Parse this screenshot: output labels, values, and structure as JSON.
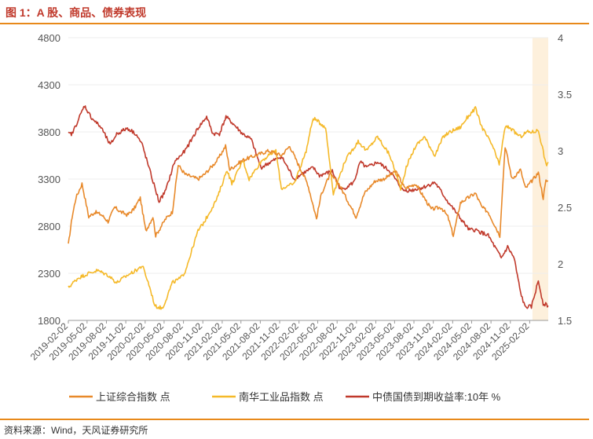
{
  "figure": {
    "title": "图 1：A 股、商品、债券表现",
    "source": "资料来源：Wind，天风证券研究所"
  },
  "chart_data": {
    "type": "line",
    "title": "图 1：A 股、商品、债券表现",
    "left_axis": {
      "ylim": [
        1800,
        4800
      ],
      "ticks": [
        1800,
        2300,
        2800,
        3300,
        3800,
        4300,
        4800
      ]
    },
    "right_axis": {
      "ylim": [
        1.5,
        4
      ],
      "ticks": [
        1.5,
        2,
        2.5,
        3,
        3.5,
        4
      ]
    },
    "x_ticks": [
      "2019-02-02",
      "2019-05-02",
      "2019-08-02",
      "2019-11-02",
      "2020-02-02",
      "2020-05-02",
      "2020-08-02",
      "2020-11-02",
      "2021-02-02",
      "2021-05-02",
      "2021-08-02",
      "2021-11-02",
      "2022-02-02",
      "2022-05-02",
      "2022-08-02",
      "2022-11-02",
      "2023-02-02",
      "2023-05-02",
      "2023-08-02",
      "2023-11-02",
      "2024-02-02",
      "2024-05-02",
      "2024-08-02",
      "2024-11-02",
      "2025-02-02"
    ],
    "x_range": [
      "2019-02-02",
      "2025-05-01"
    ],
    "highlight": {
      "from": "2025-02-15",
      "to": "2025-05-01",
      "color": "#fdf0dc"
    },
    "series": [
      {
        "name": "上证综合指数 点",
        "axis": "left",
        "color": "#e8892a",
        "x": [
          "2019-02-02",
          "2019-02-20",
          "2019-03-10",
          "2019-04-08",
          "2019-05-10",
          "2019-06-10",
          "2019-07-10",
          "2019-08-10",
          "2019-09-10",
          "2019-10-10",
          "2019-11-10",
          "2019-12-10",
          "2020-01-10",
          "2020-02-05",
          "2020-03-10",
          "2020-03-23",
          "2020-05-10",
          "2020-06-10",
          "2020-07-08",
          "2020-08-10",
          "2020-10-10",
          "2020-11-10",
          "2021-01-10",
          "2021-02-18",
          "2021-03-10",
          "2021-05-10",
          "2021-07-10",
          "2021-09-10",
          "2021-11-10",
          "2021-12-20",
          "2022-01-20",
          "2022-03-15",
          "2022-04-26",
          "2022-05-20",
          "2022-06-30",
          "2022-08-10",
          "2022-10-31",
          "2022-12-10",
          "2023-01-30",
          "2023-03-10",
          "2023-05-09",
          "2023-06-20",
          "2023-08-10",
          "2023-10-23",
          "2023-12-10",
          "2024-01-10",
          "2024-02-05",
          "2024-03-10",
          "2024-05-20",
          "2024-06-20",
          "2024-07-20",
          "2024-09-13",
          "2024-09-30",
          "2024-10-08",
          "2024-11-10",
          "2024-12-20",
          "2025-01-13",
          "2025-02-20",
          "2025-03-15",
          "2025-04-07",
          "2025-04-20",
          "2025-05-01"
        ],
        "values": [
          2600,
          2900,
          3100,
          3250,
          2900,
          2950,
          2920,
          2850,
          3000,
          2950,
          2920,
          2980,
          3100,
          2750,
          2900,
          2700,
          2880,
          2950,
          3450,
          3350,
          3300,
          3350,
          3500,
          3650,
          3400,
          3500,
          3550,
          3600,
          3550,
          3650,
          3500,
          3250,
          2880,
          3150,
          3350,
          3250,
          2900,
          3150,
          3280,
          3300,
          3380,
          3200,
          3250,
          2980,
          3000,
          2900,
          2700,
          3050,
          3150,
          3000,
          2950,
          2700,
          3350,
          3650,
          3300,
          3400,
          3200,
          3300,
          3370,
          3100,
          3280,
          3280
        ]
      },
      {
        "name": "南华工业品指数 点",
        "axis": "left",
        "color": "#f5b929",
        "x": [
          "2019-02-02",
          "2019-03-20",
          "2019-05-10",
          "2019-06-20",
          "2019-08-10",
          "2019-09-20",
          "2019-11-10",
          "2019-12-20",
          "2020-01-20",
          "2020-02-20",
          "2020-03-20",
          "2020-04-25",
          "2020-06-10",
          "2020-07-20",
          "2020-08-10",
          "2020-10-10",
          "2020-11-10",
          "2021-01-10",
          "2021-02-25",
          "2021-03-20",
          "2021-05-12",
          "2021-06-10",
          "2021-08-10",
          "2021-10-15",
          "2021-11-10",
          "2022-01-10",
          "2022-03-08",
          "2022-04-10",
          "2022-06-08",
          "2022-07-15",
          "2022-09-10",
          "2022-11-10",
          "2022-12-20",
          "2023-02-10",
          "2023-04-10",
          "2023-05-31",
          "2023-06-30",
          "2023-08-10",
          "2023-09-20",
          "2023-11-10",
          "2023-12-20",
          "2024-01-20",
          "2024-03-10",
          "2024-04-10",
          "2024-05-20",
          "2024-06-20",
          "2024-08-10",
          "2024-09-10",
          "2024-10-08",
          "2024-10-30",
          "2024-11-20",
          "2024-12-20",
          "2025-01-20",
          "2025-02-20",
          "2025-03-15",
          "2025-04-07",
          "2025-04-20",
          "2025-05-01"
        ],
        "values": [
          2150,
          2250,
          2300,
          2330,
          2280,
          2200,
          2280,
          2330,
          2380,
          2180,
          1950,
          1930,
          2200,
          2250,
          2320,
          2750,
          2850,
          3100,
          3400,
          3250,
          3500,
          3300,
          3500,
          3600,
          3200,
          3250,
          3600,
          3950,
          3850,
          3150,
          3500,
          3700,
          3600,
          3750,
          3550,
          3200,
          3450,
          3650,
          3750,
          3550,
          3750,
          3800,
          3850,
          3950,
          4050,
          3850,
          3650,
          3450,
          3850,
          3850,
          3800,
          3750,
          3800,
          3800,
          3820,
          3600,
          3450,
          3480
        ]
      },
      {
        "name": "中债国债到期收益率:10年 %",
        "axis": "right",
        "color": "#c0392b",
        "x": [
          "2019-02-02",
          "2019-02-20",
          "2019-04-20",
          "2019-05-20",
          "2019-07-10",
          "2019-08-20",
          "2019-09-20",
          "2019-11-10",
          "2019-12-20",
          "2020-01-20",
          "2020-02-20",
          "2020-04-08",
          "2020-05-10",
          "2020-06-20",
          "2020-08-10",
          "2020-10-10",
          "2020-11-20",
          "2020-12-20",
          "2021-01-20",
          "2021-02-20",
          "2021-03-20",
          "2021-05-10",
          "2021-06-20",
          "2021-08-05",
          "2021-09-20",
          "2021-11-10",
          "2022-01-10",
          "2022-02-20",
          "2022-04-10",
          "2022-05-10",
          "2022-07-10",
          "2022-08-20",
          "2022-10-20",
          "2022-11-20",
          "2022-12-20",
          "2023-02-10",
          "2023-04-10",
          "2023-06-10",
          "2023-07-20",
          "2023-09-20",
          "2023-11-10",
          "2024-01-10",
          "2024-02-20",
          "2024-04-20",
          "2024-05-20",
          "2024-07-20",
          "2024-09-20",
          "2024-10-20",
          "2024-11-20",
          "2024-12-20",
          "2025-01-10",
          "2025-02-10",
          "2025-03-15",
          "2025-04-07",
          "2025-05-01"
        ],
        "values": [
          3.15,
          3.15,
          3.4,
          3.3,
          3.2,
          3.05,
          3.15,
          3.2,
          3.15,
          3.05,
          2.85,
          2.55,
          2.65,
          2.9,
          3.0,
          3.2,
          3.3,
          3.15,
          3.15,
          3.3,
          3.25,
          3.15,
          3.1,
          2.85,
          2.9,
          2.95,
          2.75,
          2.8,
          2.85,
          2.78,
          2.82,
          2.65,
          2.72,
          2.9,
          2.85,
          2.9,
          2.82,
          2.65,
          2.65,
          2.68,
          2.72,
          2.55,
          2.45,
          2.3,
          2.3,
          2.25,
          2.05,
          2.15,
          2.05,
          1.75,
          1.62,
          1.62,
          1.85,
          1.65,
          1.63
        ]
      }
    ]
  }
}
